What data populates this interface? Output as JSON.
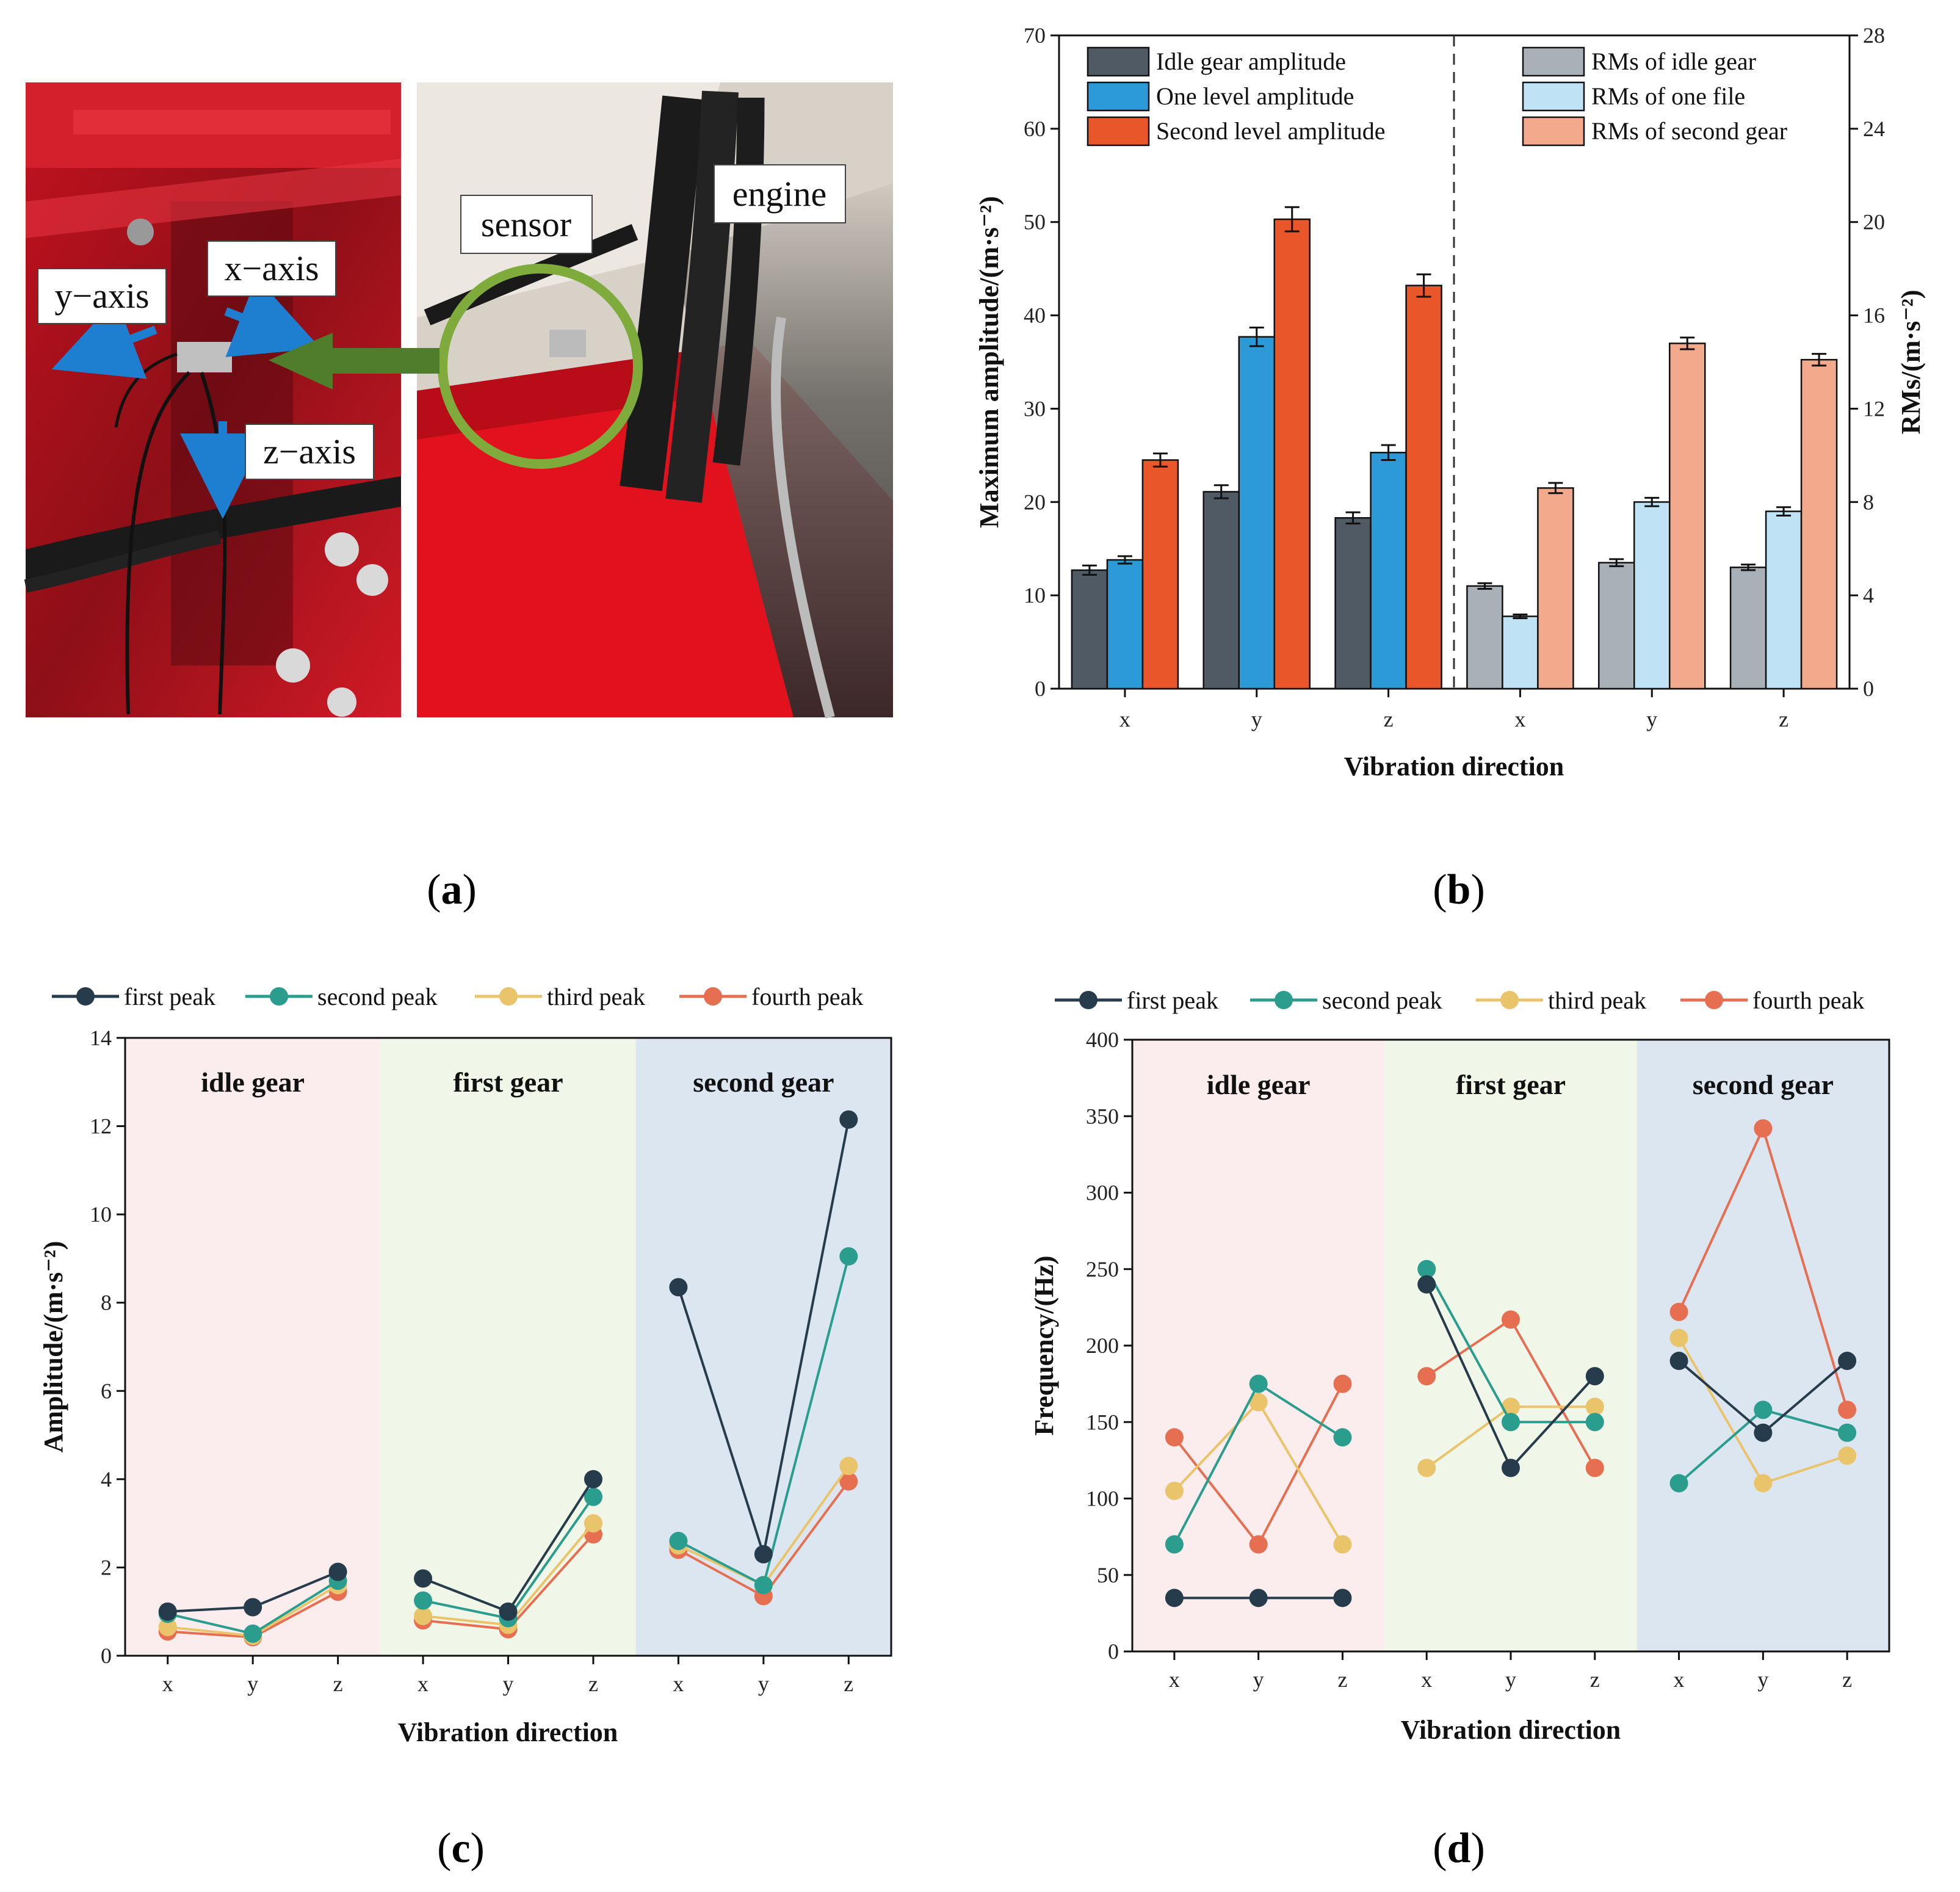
{
  "panels": {
    "a": "a",
    "b": "b",
    "c": "c",
    "d": "d"
  },
  "photo": {
    "labels": {
      "y_axis": "y−axis",
      "x_axis": "x−axis",
      "z_axis": "z−axis",
      "sensor": "sensor",
      "engine": "engine"
    }
  },
  "chart_data": [
    {
      "id": "b",
      "type": "bar",
      "xlabel": "Vibration direction",
      "ylabel": "Maximum amplitude/(m·s⁻²)",
      "ylabel_right": "RMs/(m·s⁻²)",
      "ylim": [
        0,
        70
      ],
      "ylim_right": [
        0,
        28
      ],
      "yticks": [
        0,
        10,
        20,
        30,
        40,
        50,
        60,
        70
      ],
      "yticks_right": [
        0,
        4,
        8,
        12,
        16,
        20,
        24,
        28
      ],
      "groups": [
        {
          "name": "amplitude",
          "axis": "left",
          "categories": [
            "x",
            "y",
            "z"
          ],
          "series": [
            {
              "name": "Idle gear amplitude",
              "color": "#505a65",
              "values": [
                12.7,
                21.1,
                18.3
              ],
              "errors": [
                0.5,
                0.7,
                0.6
              ]
            },
            {
              "name": "One level amplitude",
              "color": "#2b9ad6",
              "values": [
                13.8,
                37.7,
                25.3
              ],
              "errors": [
                0.4,
                1.0,
                0.8
              ]
            },
            {
              "name": "Second level amplitude",
              "color": "#e8562a",
              "values": [
                24.5,
                50.3,
                43.2
              ],
              "errors": [
                0.7,
                1.3,
                1.2
              ]
            }
          ]
        },
        {
          "name": "rms",
          "axis": "right",
          "categories": [
            "x",
            "y",
            "z"
          ],
          "series": [
            {
              "name": "RMs of idle gear",
              "color": "#a8b0b8",
              "values": [
                4.4,
                5.4,
                5.2
              ],
              "errors": [
                0.12,
                0.15,
                0.12
              ]
            },
            {
              "name": "RMs of one file",
              "color": "#bfe3f4",
              "values": [
                3.1,
                8.0,
                7.6
              ],
              "errors": [
                0.08,
                0.18,
                0.18
              ]
            },
            {
              "name": "RMs of second gear",
              "color": "#f2a98c",
              "values": [
                8.6,
                14.8,
                14.1
              ],
              "errors": [
                0.22,
                0.25,
                0.25
              ]
            }
          ]
        }
      ]
    },
    {
      "id": "c",
      "type": "line",
      "xlabel": "Vibration direction",
      "ylabel": "Amplitude/(m·s⁻²)",
      "ylim": [
        0,
        14
      ],
      "yticks": [
        0,
        2,
        4,
        6,
        8,
        10,
        12,
        14
      ],
      "x": [
        "x",
        "y",
        "z",
        "x",
        "y",
        "z",
        "x",
        "y",
        "z"
      ],
      "regions": [
        {
          "label": "idle gear",
          "color": "#fbeded"
        },
        {
          "label": "first gear",
          "color": "#f0f6e8"
        },
        {
          "label": "second gear",
          "color": "#dce6f1"
        }
      ],
      "series": [
        {
          "name": "first peak",
          "color": "#263c4c",
          "values": [
            1.0,
            1.1,
            1.9,
            1.75,
            1.0,
            4.0,
            8.35,
            2.3,
            12.15
          ]
        },
        {
          "name": "second peak",
          "color": "#2a9d8f",
          "values": [
            0.95,
            0.5,
            1.7,
            1.25,
            0.85,
            3.6,
            2.6,
            1.6,
            9.05
          ]
        },
        {
          "name": "third peak",
          "color": "#e9c46a",
          "values": [
            0.65,
            0.45,
            1.6,
            0.9,
            0.7,
            3.0,
            2.5,
            1.6,
            4.3
          ]
        },
        {
          "name": "fourth peak",
          "color": "#e76f51",
          "values": [
            0.55,
            0.42,
            1.45,
            0.8,
            0.6,
            2.75,
            2.4,
            1.35,
            3.95
          ]
        }
      ]
    },
    {
      "id": "d",
      "type": "line",
      "xlabel": "Vibration direction",
      "ylabel": "Frequency/(Hz)",
      "ylim": [
        0,
        400
      ],
      "yticks": [
        0,
        50,
        100,
        150,
        200,
        250,
        300,
        350,
        400
      ],
      "x": [
        "x",
        "y",
        "z",
        "x",
        "y",
        "z",
        "x",
        "y",
        "z"
      ],
      "regions": [
        {
          "label": "idle gear",
          "color": "#fbeded"
        },
        {
          "label": "first gear",
          "color": "#f0f6e8"
        },
        {
          "label": "second gear",
          "color": "#dce6f1"
        }
      ],
      "series": [
        {
          "name": "first peak",
          "color": "#263c4c",
          "values": [
            35,
            35,
            35,
            240,
            120,
            180,
            190,
            143,
            190
          ]
        },
        {
          "name": "second peak",
          "color": "#2a9d8f",
          "values": [
            70,
            175,
            140,
            250,
            150,
            150,
            110,
            158,
            143
          ]
        },
        {
          "name": "third peak",
          "color": "#e9c46a",
          "values": [
            105,
            163,
            70,
            120,
            160,
            160,
            205,
            110,
            128
          ]
        },
        {
          "name": "fourth peak",
          "color": "#e76f51",
          "values": [
            140,
            70,
            175,
            180,
            217,
            120,
            222,
            342,
            158
          ]
        }
      ]
    }
  ]
}
